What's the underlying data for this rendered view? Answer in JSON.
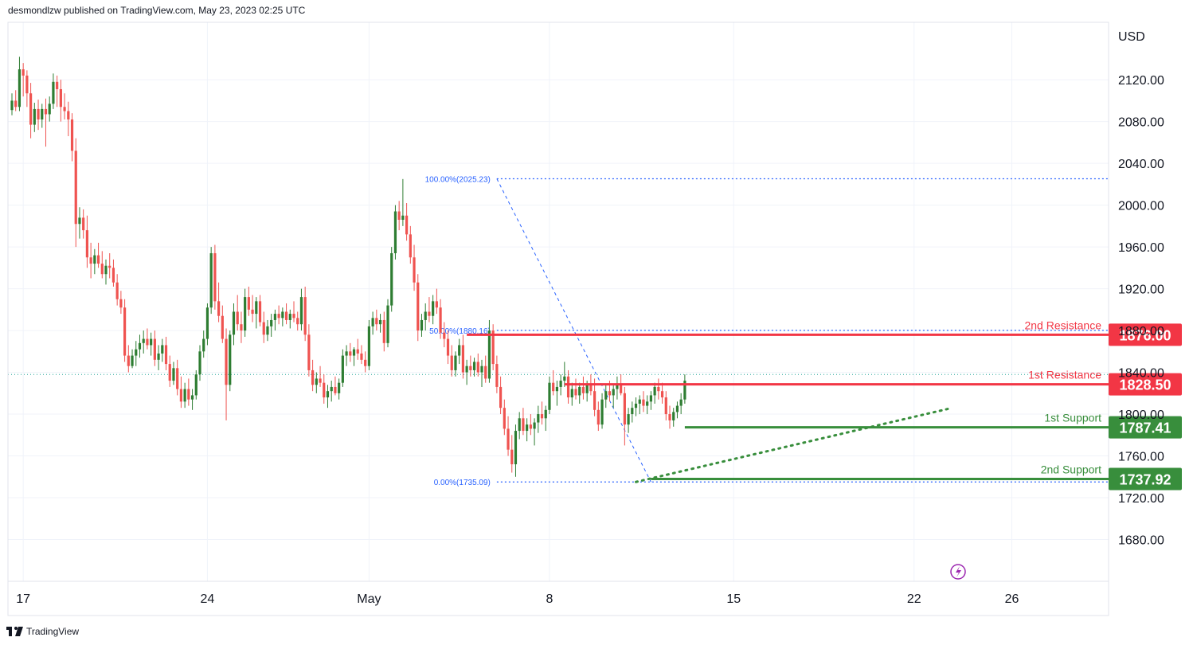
{
  "header": {
    "publisher_line": "desmondlzw published on TradingView.com, May 23, 2023 02:25 UTC"
  },
  "footer": {
    "brand": "TradingView"
  },
  "colors": {
    "up": "#26a69a",
    "up_dark": "#2e7d32",
    "down": "#ef5350",
    "resistance": "#f23645",
    "support": "#388e3c",
    "fib": "#2962ff",
    "grid": "#f0f3fa"
  },
  "icons": {
    "replay": "lightning-bolt-icon",
    "logo": "tradingview-logo-icon"
  },
  "chart_data": {
    "type": "candlestick",
    "currency": "USD",
    "ylim": [
      1640,
      2175
    ],
    "y_ticks": [
      {
        "value": 2120,
        "label": "2120.00"
      },
      {
        "value": 2080,
        "label": "2080.00"
      },
      {
        "value": 2040,
        "label": "2040.00"
      },
      {
        "value": 2000,
        "label": "2000.00"
      },
      {
        "value": 1960,
        "label": "1960.00"
      },
      {
        "value": 1920,
        "label": "1920.00"
      },
      {
        "value": 1880,
        "label": "1880.00"
      },
      {
        "value": 1840,
        "label": "1840.00"
      },
      {
        "value": 1800,
        "label": "1800.00"
      },
      {
        "value": 1760,
        "label": "1760.00"
      },
      {
        "value": 1720,
        "label": "1720.00"
      },
      {
        "value": 1680,
        "label": "1680.00"
      }
    ],
    "x_ticks": [
      {
        "bar": 3,
        "label": "17"
      },
      {
        "bar": 52,
        "label": "24"
      },
      {
        "bar": 95,
        "label": "May"
      },
      {
        "bar": 143,
        "label": "8"
      },
      {
        "bar": 192,
        "label": "15"
      },
      {
        "bar": 240,
        "label": "22"
      },
      {
        "bar": 266,
        "label": "26"
      }
    ],
    "levels": [
      {
        "name": "2nd Resistance",
        "value": 1876.0,
        "label": "1876.00",
        "kind": "resistance",
        "from_bar": 121
      },
      {
        "name": "1st Resistance",
        "value": 1828.5,
        "label": "1828.50",
        "kind": "resistance",
        "from_bar": 147
      },
      {
        "name": "1st Support",
        "value": 1787.41,
        "label": "1787.41",
        "kind": "support",
        "from_bar": 179
      },
      {
        "name": "2nd Support",
        "value": 1737.92,
        "label": "1737.92",
        "kind": "support",
        "from_bar": 170
      }
    ],
    "fibonacci": [
      {
        "label": "100.00%(2025.23)",
        "value": 2025.23,
        "bar": 129
      },
      {
        "label": "50.00%(1880.16)",
        "value": 1880.16,
        "bar": 129
      },
      {
        "label": "0.00%(1735.09)",
        "value": 1735.09,
        "bar": 129
      }
    ],
    "fib_diagonal": {
      "from": {
        "bar": 129,
        "value": 2025.23
      },
      "to": {
        "bar": 170,
        "value": 1735.09
      }
    },
    "trendline": {
      "from": {
        "bar": 166,
        "value": 1735.09
      },
      "to": {
        "bar": 249,
        "value": 1805
      }
    },
    "last_price": 1838,
    "candles": [
      [
        2091,
        2107,
        2086,
        2100
      ],
      [
        2100,
        2110,
        2090,
        2094
      ],
      [
        2094,
        2142,
        2090,
        2130
      ],
      [
        2130,
        2136,
        2104,
        2124
      ],
      [
        2124,
        2129,
        2094,
        2107
      ],
      [
        2107,
        2117,
        2064,
        2077
      ],
      [
        2077,
        2098,
        2070,
        2092
      ],
      [
        2092,
        2101,
        2072,
        2082
      ],
      [
        2082,
        2097,
        2074,
        2092
      ],
      [
        2092,
        2102,
        2056,
        2087
      ],
      [
        2087,
        2104,
        2080,
        2097
      ],
      [
        2097,
        2126,
        2092,
        2118
      ],
      [
        2118,
        2124,
        2094,
        2111
      ],
      [
        2111,
        2120,
        2080,
        2094
      ],
      [
        2094,
        2107,
        2082,
        2090
      ],
      [
        2090,
        2099,
        2066,
        2082
      ],
      [
        2082,
        2088,
        2042,
        2052
      ],
      [
        2052,
        2064,
        1960,
        1982
      ],
      [
        1982,
        1998,
        1968,
        1988
      ],
      [
        1988,
        1996,
        1968,
        1976
      ],
      [
        1976,
        1990,
        1940,
        1950
      ],
      [
        1950,
        1964,
        1930,
        1944
      ],
      [
        1944,
        1958,
        1934,
        1952
      ],
      [
        1952,
        1964,
        1940,
        1944
      ],
      [
        1944,
        1956,
        1930,
        1934
      ],
      [
        1934,
        1948,
        1924,
        1942
      ],
      [
        1942,
        1954,
        1930,
        1940
      ],
      [
        1940,
        1948,
        1922,
        1926
      ],
      [
        1926,
        1934,
        1904,
        1910
      ],
      [
        1910,
        1918,
        1896,
        1902
      ],
      [
        1902,
        1910,
        1850,
        1856
      ],
      [
        1856,
        1866,
        1840,
        1846
      ],
      [
        1846,
        1862,
        1844,
        1856
      ],
      [
        1856,
        1870,
        1846,
        1862
      ],
      [
        1862,
        1876,
        1854,
        1868
      ],
      [
        1868,
        1880,
        1858,
        1872
      ],
      [
        1872,
        1882,
        1862,
        1866
      ],
      [
        1866,
        1878,
        1856,
        1872
      ],
      [
        1872,
        1880,
        1846,
        1852
      ],
      [
        1852,
        1866,
        1842,
        1858
      ],
      [
        1858,
        1872,
        1850,
        1866
      ],
      [
        1866,
        1874,
        1842,
        1848
      ],
      [
        1848,
        1856,
        1826,
        1832
      ],
      [
        1832,
        1850,
        1828,
        1844
      ],
      [
        1844,
        1852,
        1818,
        1824
      ],
      [
        1824,
        1836,
        1806,
        1812
      ],
      [
        1812,
        1830,
        1806,
        1824
      ],
      [
        1824,
        1834,
        1808,
        1814
      ],
      [
        1814,
        1824,
        1804,
        1818
      ],
      [
        1818,
        1842,
        1814,
        1838
      ],
      [
        1838,
        1866,
        1832,
        1860
      ],
      [
        1860,
        1880,
        1854,
        1872
      ],
      [
        1872,
        1906,
        1866,
        1902
      ],
      [
        1902,
        1960,
        1896,
        1954
      ],
      [
        1954,
        1962,
        1900,
        1908
      ],
      [
        1908,
        1926,
        1888,
        1894
      ],
      [
        1894,
        1904,
        1868,
        1872
      ],
      [
        1872,
        1882,
        1794,
        1828
      ],
      [
        1828,
        1880,
        1822,
        1876
      ],
      [
        1876,
        1906,
        1866,
        1898
      ],
      [
        1898,
        1914,
        1880,
        1886
      ],
      [
        1886,
        1898,
        1868,
        1880
      ],
      [
        1880,
        1920,
        1874,
        1912
      ],
      [
        1912,
        1922,
        1894,
        1900
      ],
      [
        1900,
        1914,
        1888,
        1896
      ],
      [
        1896,
        1912,
        1882,
        1908
      ],
      [
        1908,
        1914,
        1884,
        1888
      ],
      [
        1888,
        1898,
        1868,
        1876
      ],
      [
        1876,
        1890,
        1870,
        1884
      ],
      [
        1884,
        1896,
        1874,
        1890
      ],
      [
        1890,
        1900,
        1880,
        1896
      ],
      [
        1896,
        1904,
        1886,
        1892
      ],
      [
        1892,
        1902,
        1884,
        1898
      ],
      [
        1898,
        1906,
        1886,
        1890
      ],
      [
        1890,
        1900,
        1882,
        1896
      ],
      [
        1896,
        1908,
        1888,
        1892
      ],
      [
        1892,
        1898,
        1880,
        1886
      ],
      [
        1886,
        1920,
        1880,
        1912
      ],
      [
        1912,
        1922,
        1870,
        1876
      ],
      [
        1876,
        1886,
        1836,
        1842
      ],
      [
        1842,
        1852,
        1822,
        1828
      ],
      [
        1828,
        1840,
        1820,
        1834
      ],
      [
        1834,
        1846,
        1826,
        1830
      ],
      [
        1830,
        1838,
        1810,
        1816
      ],
      [
        1816,
        1828,
        1806,
        1822
      ],
      [
        1822,
        1832,
        1812,
        1826
      ],
      [
        1826,
        1836,
        1818,
        1820
      ],
      [
        1820,
        1834,
        1814,
        1830
      ],
      [
        1830,
        1862,
        1826,
        1856
      ],
      [
        1856,
        1866,
        1846,
        1860
      ],
      [
        1860,
        1868,
        1850,
        1856
      ],
      [
        1856,
        1864,
        1846,
        1862
      ],
      [
        1862,
        1872,
        1852,
        1858
      ],
      [
        1858,
        1866,
        1848,
        1852
      ],
      [
        1852,
        1860,
        1840,
        1846
      ],
      [
        1846,
        1890,
        1842,
        1884
      ],
      [
        1884,
        1898,
        1876,
        1892
      ],
      [
        1892,
        1900,
        1880,
        1886
      ],
      [
        1886,
        1896,
        1878,
        1890
      ],
      [
        1890,
        1898,
        1860,
        1868
      ],
      [
        1868,
        1910,
        1864,
        1904
      ],
      [
        1904,
        1960,
        1898,
        1954
      ],
      [
        1954,
        2000,
        1948,
        1994
      ],
      [
        1994,
        2004,
        1976,
        1986
      ],
      [
        1986,
        2025,
        1980,
        1990
      ],
      [
        1990,
        2002,
        1966,
        1972
      ],
      [
        1972,
        1980,
        1944,
        1950
      ],
      [
        1950,
        1962,
        1918,
        1926
      ],
      [
        1926,
        1934,
        1870,
        1880
      ],
      [
        1880,
        1896,
        1874,
        1890
      ],
      [
        1890,
        1906,
        1880,
        1898
      ],
      [
        1898,
        1912,
        1888,
        1894
      ],
      [
        1894,
        1914,
        1886,
        1908
      ],
      [
        1908,
        1920,
        1896,
        1902
      ],
      [
        1902,
        1910,
        1872,
        1878
      ],
      [
        1878,
        1888,
        1864,
        1872
      ],
      [
        1872,
        1880,
        1848,
        1856
      ],
      [
        1856,
        1866,
        1836,
        1842
      ],
      [
        1842,
        1860,
        1836,
        1856
      ],
      [
        1856,
        1872,
        1848,
        1866
      ],
      [
        1866,
        1876,
        1834,
        1840
      ],
      [
        1840,
        1852,
        1828,
        1846
      ],
      [
        1846,
        1856,
        1836,
        1842
      ],
      [
        1842,
        1854,
        1836,
        1850
      ],
      [
        1850,
        1858,
        1836,
        1840
      ],
      [
        1840,
        1852,
        1826,
        1846
      ],
      [
        1846,
        1856,
        1830,
        1834
      ],
      [
        1834,
        1890,
        1830,
        1880
      ],
      [
        1880,
        1886,
        1842,
        1848
      ],
      [
        1848,
        1856,
        1820,
        1826
      ],
      [
        1826,
        1836,
        1800,
        1806
      ],
      [
        1806,
        1814,
        1780,
        1786
      ],
      [
        1786,
        1798,
        1760,
        1766
      ],
      [
        1766,
        1780,
        1744,
        1752
      ],
      [
        1752,
        1790,
        1740,
        1784
      ],
      [
        1784,
        1802,
        1776,
        1796
      ],
      [
        1796,
        1806,
        1780,
        1784
      ],
      [
        1784,
        1796,
        1774,
        1790
      ],
      [
        1790,
        1800,
        1780,
        1786
      ],
      [
        1786,
        1796,
        1770,
        1792
      ],
      [
        1792,
        1808,
        1782,
        1800
      ],
      [
        1800,
        1812,
        1790,
        1796
      ],
      [
        1796,
        1808,
        1784,
        1804
      ],
      [
        1804,
        1836,
        1800,
        1830
      ],
      [
        1830,
        1842,
        1818,
        1822
      ],
      [
        1822,
        1832,
        1808,
        1826
      ],
      [
        1826,
        1838,
        1818,
        1832
      ],
      [
        1832,
        1850,
        1826,
        1836
      ],
      [
        1836,
        1842,
        1810,
        1816
      ],
      [
        1816,
        1830,
        1808,
        1824
      ],
      [
        1824,
        1834,
        1814,
        1818
      ],
      [
        1818,
        1830,
        1810,
        1826
      ],
      [
        1826,
        1836,
        1814,
        1820
      ],
      [
        1820,
        1832,
        1812,
        1828
      ],
      [
        1828,
        1838,
        1818,
        1822
      ],
      [
        1822,
        1834,
        1798,
        1804
      ],
      [
        1804,
        1812,
        1784,
        1790
      ],
      [
        1790,
        1820,
        1786,
        1814
      ],
      [
        1814,
        1828,
        1806,
        1822
      ],
      [
        1822,
        1832,
        1812,
        1818
      ],
      [
        1818,
        1828,
        1806,
        1824
      ],
      [
        1824,
        1836,
        1814,
        1828
      ],
      [
        1828,
        1838,
        1818,
        1820
      ],
      [
        1820,
        1826,
        1770,
        1790
      ],
      [
        1790,
        1806,
        1782,
        1800
      ],
      [
        1800,
        1812,
        1792,
        1806
      ],
      [
        1806,
        1816,
        1798,
        1810
      ],
      [
        1810,
        1818,
        1800,
        1814
      ],
      [
        1814,
        1822,
        1802,
        1808
      ],
      [
        1808,
        1818,
        1800,
        1812
      ],
      [
        1812,
        1822,
        1804,
        1818
      ],
      [
        1818,
        1830,
        1810,
        1826
      ],
      [
        1826,
        1834,
        1814,
        1822
      ],
      [
        1822,
        1830,
        1810,
        1816
      ],
      [
        1816,
        1822,
        1794,
        1800
      ],
      [
        1800,
        1808,
        1786,
        1794
      ],
      [
        1794,
        1806,
        1788,
        1802
      ],
      [
        1802,
        1812,
        1796,
        1808
      ],
      [
        1808,
        1820,
        1800,
        1814
      ],
      [
        1814,
        1838,
        1810,
        1832
      ]
    ]
  }
}
